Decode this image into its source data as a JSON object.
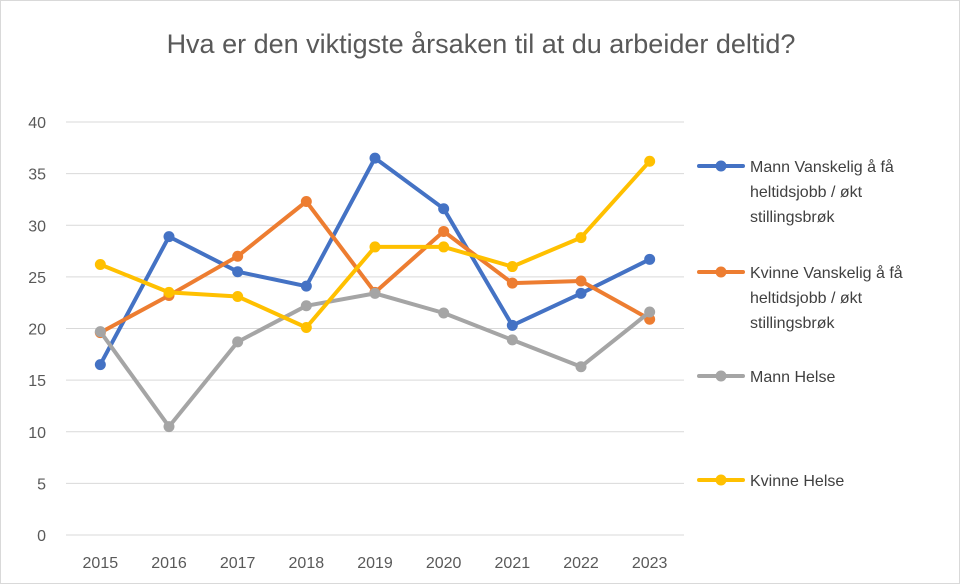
{
  "chart_data": {
    "type": "line",
    "title": "Hva er den viktigste årsaken til at du arbeider deltid?",
    "xlabel": "",
    "ylabel": "",
    "ylim": [
      0,
      40
    ],
    "yticks": [
      0,
      5,
      10,
      15,
      20,
      25,
      30,
      35,
      40
    ],
    "categories": [
      "2015",
      "2016",
      "2017",
      "2018",
      "2019",
      "2020",
      "2021",
      "2022",
      "2023"
    ],
    "grid": true,
    "legend_position": "right",
    "series": [
      {
        "name": "Mann Vanskelig å få heltidsjobb / økt stillingsbrøk",
        "legend_lines": [
          "Mann Vanskelig å få",
          "heltidsjobb / økt",
          "stillingsbrøk"
        ],
        "color": "#4472c4",
        "values": [
          16.5,
          28.9,
          25.5,
          24.1,
          36.5,
          31.6,
          20.3,
          23.4,
          26.7
        ]
      },
      {
        "name": "Kvinne Vanskelig å få heltidsjobb / økt stillingsbrøk",
        "legend_lines": [
          "Kvinne Vanskelig å få",
          "heltidsjobb / økt",
          "stillingsbrøk"
        ],
        "color": "#ed7d31",
        "values": [
          19.6,
          23.2,
          27.0,
          32.3,
          23.5,
          29.4,
          24.4,
          24.6,
          20.9
        ]
      },
      {
        "name": "Mann Helse",
        "legend_lines": [
          "Mann Helse"
        ],
        "color": "#a5a5a5",
        "values": [
          19.7,
          10.5,
          18.7,
          22.2,
          23.4,
          21.5,
          18.9,
          16.3,
          21.6
        ]
      },
      {
        "name": "Kvinne Helse",
        "legend_lines": [
          "Kvinne Helse"
        ],
        "color": "#ffc000",
        "values": [
          26.2,
          23.5,
          23.1,
          20.1,
          27.9,
          27.9,
          26.0,
          28.8,
          36.2
        ]
      }
    ]
  }
}
